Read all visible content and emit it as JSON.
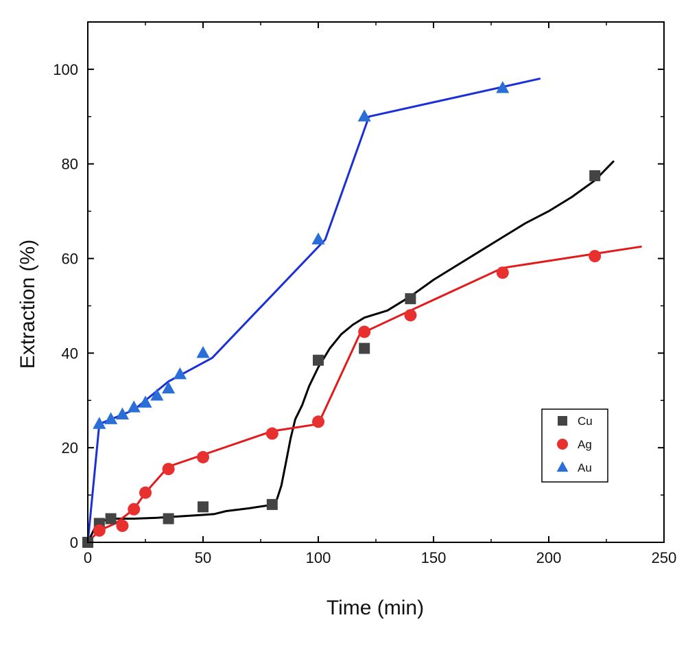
{
  "chart_data": {
    "type": "scatter",
    "title": "",
    "xlabel": "Time (min)",
    "ylabel": "Extraction (%)",
    "xlim": [
      0,
      250
    ],
    "ylim": [
      0,
      110
    ],
    "xticks": [
      0,
      50,
      100,
      150,
      200,
      250
    ],
    "yticks": [
      0,
      20,
      40,
      60,
      80,
      100
    ],
    "grid": false,
    "legend_position": "bottom-right",
    "series": [
      {
        "name": "Cu",
        "color": "#444444",
        "marker": "square",
        "points": [
          [
            0,
            0
          ],
          [
            5,
            4
          ],
          [
            10,
            5
          ],
          [
            35,
            5
          ],
          [
            50,
            7.5
          ],
          [
            80,
            8
          ],
          [
            100,
            38.5
          ],
          [
            120,
            41
          ],
          [
            140,
            51.5
          ],
          [
            220,
            77.5
          ]
        ],
        "fit_color": "#000000",
        "fit": [
          [
            0,
            0
          ],
          [
            3,
            3
          ],
          [
            6,
            4.5
          ],
          [
            10,
            5
          ],
          [
            20,
            5
          ],
          [
            30,
            5.2
          ],
          [
            40,
            5.5
          ],
          [
            50,
            5.8
          ],
          [
            55,
            6
          ],
          [
            60,
            6.6
          ],
          [
            70,
            7.2
          ],
          [
            78,
            7.8
          ],
          [
            82,
            9
          ],
          [
            84,
            12
          ],
          [
            86,
            17
          ],
          [
            88,
            22
          ],
          [
            90,
            26
          ],
          [
            93,
            29
          ],
          [
            96,
            33
          ],
          [
            100,
            37
          ],
          [
            105,
            41
          ],
          [
            110,
            44
          ],
          [
            115,
            46
          ],
          [
            120,
            47.5
          ],
          [
            130,
            49
          ],
          [
            140,
            52
          ],
          [
            150,
            55.5
          ],
          [
            160,
            58.5
          ],
          [
            170,
            61.5
          ],
          [
            180,
            64.5
          ],
          [
            190,
            67.5
          ],
          [
            200,
            70
          ],
          [
            210,
            73
          ],
          [
            220,
            76.5
          ],
          [
            228,
            80.5
          ]
        ]
      },
      {
        "name": "Ag",
        "color": "#e8302f",
        "marker": "circle",
        "points": [
          [
            5,
            2.5
          ],
          [
            15,
            3.5
          ],
          [
            20,
            7
          ],
          [
            25,
            10.5
          ],
          [
            35,
            15.5
          ],
          [
            50,
            18
          ],
          [
            80,
            23
          ],
          [
            100,
            25.5
          ],
          [
            120,
            44.5
          ],
          [
            140,
            48
          ],
          [
            180,
            57
          ],
          [
            220,
            60.5
          ]
        ],
        "fit_color": "#e31a1c",
        "fit": [
          [
            0,
            0
          ],
          [
            5,
            2.5
          ],
          [
            12,
            4
          ],
          [
            20,
            7
          ],
          [
            25,
            10.5
          ],
          [
            35,
            16
          ],
          [
            50,
            18.5
          ],
          [
            80,
            23.5
          ],
          [
            100,
            25
          ],
          [
            118,
            44
          ],
          [
            140,
            49
          ],
          [
            180,
            58
          ],
          [
            240,
            62.5
          ]
        ]
      },
      {
        "name": "Au",
        "color": "#2a6fd8",
        "marker": "triangle",
        "points": [
          [
            5,
            25
          ],
          [
            10,
            26
          ],
          [
            15,
            27
          ],
          [
            20,
            28.5
          ],
          [
            25,
            29.5
          ],
          [
            30,
            31
          ],
          [
            35,
            32.5
          ],
          [
            40,
            35.5
          ],
          [
            50,
            40
          ],
          [
            100,
            64
          ],
          [
            120,
            90
          ],
          [
            180,
            96
          ]
        ],
        "fit_color": "#1a2fd6",
        "fit": [
          [
            0,
            0
          ],
          [
            5,
            25
          ],
          [
            20,
            28
          ],
          [
            35,
            34
          ],
          [
            54,
            39
          ],
          [
            103,
            64
          ],
          [
            122,
            90
          ],
          [
            196,
            98
          ]
        ]
      }
    ]
  }
}
